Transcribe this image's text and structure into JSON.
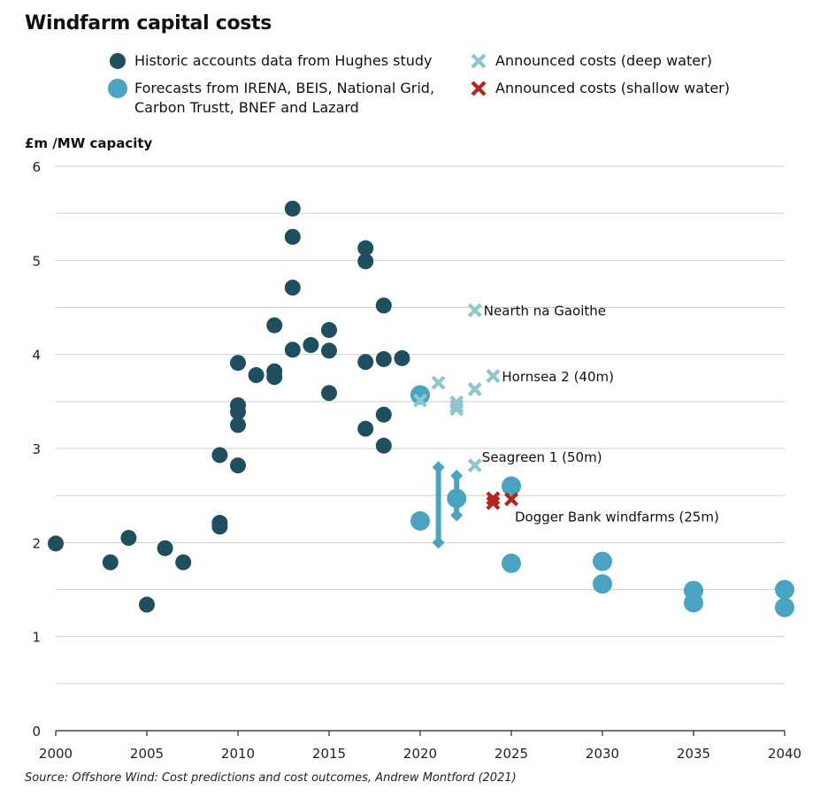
{
  "title": "Windfarm capital costs",
  "source": "Source: Offshore Wind: Cost predictions and cost outcomes, Andrew Montford (2021)",
  "colors": {
    "historic": "#1f4e5f",
    "forecast": "#4aa3c0",
    "deep_water": "#8fc5cc",
    "shallow_water": "#b3261e",
    "grid": "#cfcfcf",
    "axis": "#222222"
  },
  "legend": [
    {
      "key": "historic",
      "marker": "circle",
      "label": "Historic accounts data from Hughes study"
    },
    {
      "key": "forecast",
      "marker": "circle",
      "label": "Forecasts from IRENA, BEIS, National Grid,\nCarbon Trustt, BNEF and Lazard"
    },
    {
      "key": "deep_water",
      "marker": "cross",
      "label": "Announced costs (deep water)"
    },
    {
      "key": "shallow_water",
      "marker": "cross",
      "label": "Announced costs (shallow water)"
    }
  ],
  "chart_data": {
    "type": "scatter",
    "title": "Windfarm capital costs",
    "ylabel": "£m /MW capacity",
    "xlabel": "",
    "xlim": [
      2000,
      2040
    ],
    "ylim": [
      0,
      6
    ],
    "xticks": [
      2000,
      2005,
      2010,
      2015,
      2020,
      2025,
      2030,
      2035,
      2040
    ],
    "yticks": [
      0,
      1,
      2,
      3,
      4,
      5,
      6
    ],
    "grid": "horizontal",
    "legend_position": "top",
    "series": [
      {
        "name": "Historic accounts data from Hughes study",
        "marker": "circle",
        "points": [
          [
            2000,
            1.99
          ],
          [
            2003,
            1.79
          ],
          [
            2004,
            2.05
          ],
          [
            2005,
            1.34
          ],
          [
            2006,
            1.94
          ],
          [
            2007,
            1.79
          ],
          [
            2009,
            2.93
          ],
          [
            2009,
            2.21
          ],
          [
            2009,
            2.17
          ],
          [
            2010,
            3.91
          ],
          [
            2010,
            3.46
          ],
          [
            2010,
            3.39
          ],
          [
            2010,
            3.25
          ],
          [
            2010,
            2.82
          ],
          [
            2011,
            3.78
          ],
          [
            2012,
            4.31
          ],
          [
            2012,
            3.82
          ],
          [
            2012,
            3.76
          ],
          [
            2013,
            5.55
          ],
          [
            2013,
            5.25
          ],
          [
            2013,
            4.71
          ],
          [
            2013,
            4.05
          ],
          [
            2014,
            4.1
          ],
          [
            2015,
            4.26
          ],
          [
            2015,
            4.04
          ],
          [
            2015,
            3.59
          ],
          [
            2017,
            5.13
          ],
          [
            2017,
            4.99
          ],
          [
            2017,
            3.92
          ],
          [
            2017,
            3.21
          ],
          [
            2018,
            4.52
          ],
          [
            2018,
            3.95
          ],
          [
            2018,
            3.36
          ],
          [
            2018,
            3.03
          ],
          [
            2019,
            3.96
          ]
        ]
      },
      {
        "name": "Forecasts from IRENA, BEIS, National Grid, Carbon Trustt, BNEF and Lazard",
        "marker": "circle",
        "points": [
          [
            2020,
            3.57
          ],
          [
            2020,
            2.23
          ],
          [
            2022,
            2.47
          ],
          [
            2025,
            2.6
          ],
          [
            2025,
            1.78
          ],
          [
            2030,
            1.8
          ],
          [
            2030,
            1.56
          ],
          [
            2035,
            1.49
          ],
          [
            2035,
            1.36
          ],
          [
            2040,
            1.5
          ],
          [
            2040,
            1.31
          ]
        ],
        "ranges": [
          {
            "x": 2021,
            "low": 2.0,
            "high": 2.8
          },
          {
            "x": 2022,
            "low": 2.29,
            "high": 2.71
          }
        ]
      },
      {
        "name": "Announced costs (deep water)",
        "marker": "cross",
        "points": [
          [
            2020,
            3.51
          ],
          [
            2021,
            3.7
          ],
          [
            2022,
            3.49
          ],
          [
            2022,
            3.45
          ],
          [
            2022,
            3.42
          ],
          [
            2023,
            3.63
          ],
          [
            2023,
            4.47
          ],
          [
            2024,
            3.77
          ],
          [
            2023,
            2.82
          ]
        ]
      },
      {
        "name": "Announced costs (shallow water)",
        "marker": "cross",
        "points": [
          [
            2024,
            2.47
          ],
          [
            2024,
            2.42
          ],
          [
            2025,
            2.46
          ]
        ]
      }
    ],
    "annotations": [
      {
        "text": "Nearth na Gaoithe",
        "x": 2023,
        "y": 4.47
      },
      {
        "text": "Hornsea 2 (40m)",
        "x": 2024,
        "y": 3.77
      },
      {
        "text": "Seagreen 1 (50m)",
        "x": 2023,
        "y": 2.82
      },
      {
        "text": "Dogger Bank windfarms (25m)",
        "x": 2025,
        "y": 2.46
      }
    ]
  }
}
